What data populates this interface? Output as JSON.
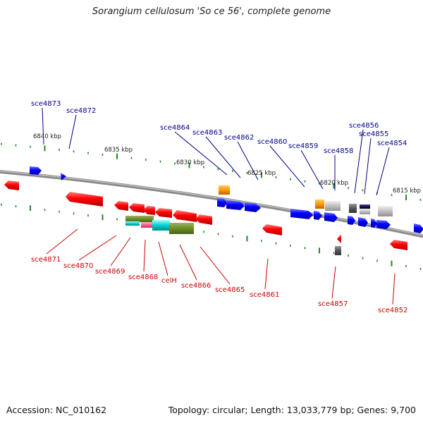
{
  "title": "Sorangium cellulosum 'So ce 56', complete genome",
  "footer": {
    "accession": "Accession: NC_010162",
    "topology": "Topology: circular; Length: 13,033,779 bp; Genes: 9,700"
  },
  "colors": {
    "backbone": "#888888",
    "forward_label": "#00008b",
    "reverse_label": "#cc0000",
    "tick": "#1f8a1f",
    "forward_gene": "#0000ff",
    "reverse_gene": "#ff0000"
  },
  "scale_labels": [
    "6840 kbp",
    "6835 kbp",
    "6830 kbp",
    "6825 kbp",
    "6820 kbp",
    "6815 kbp"
  ],
  "forward_labels": [
    "sce4873",
    "sce4872",
    "sce4864",
    "sce4863",
    "sce4862",
    "sce4860",
    "sce4859",
    "sce4858",
    "sce4856",
    "sce4855",
    "sce4854"
  ],
  "reverse_labels": [
    "sce4871",
    "sce4870",
    "sce4869",
    "sce4868",
    "celH",
    "sce4866",
    "sce4865",
    "sce4861",
    "sce4857",
    "sce4852"
  ]
}
